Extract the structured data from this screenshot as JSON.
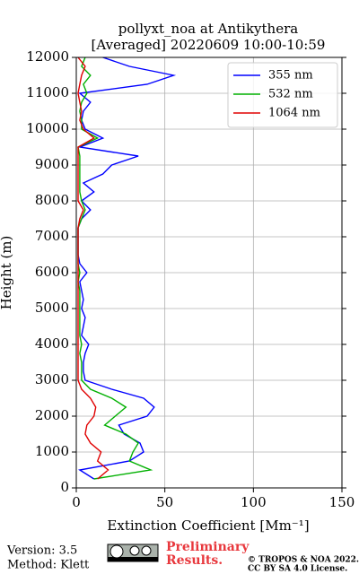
{
  "chart_data": {
    "type": "profile",
    "title": "pollyxt_noa at Antikythera",
    "subtitle": "[Averaged] 20220609 10:00-10:59",
    "xlabel": "Extinction Coefficient [Mm⁻¹]",
    "ylabel": "Height (m)",
    "x": [
      250,
      500,
      750,
      1000,
      1250,
      1500,
      1750,
      2000,
      2250,
      2500,
      2750,
      3000,
      3250,
      3500,
      3750,
      4000,
      4250,
      4500,
      4750,
      5000,
      5250,
      5500,
      5750,
      6000,
      6250,
      6500,
      6750,
      7000,
      7250,
      7500,
      7750,
      8000,
      8250,
      8500,
      8750,
      9000,
      9250,
      9500,
      9750,
      10000,
      10250,
      10500,
      10750,
      11000,
      11250,
      11500,
      11750,
      12000
    ],
    "series": [
      {
        "name": "355 nm",
        "color": "#0000ff",
        "values": [
          10,
          2,
          30,
          38,
          36,
          27,
          24,
          40,
          44,
          38,
          20,
          5,
          4,
          4,
          5,
          7,
          3,
          4,
          5,
          3,
          4,
          3,
          2,
          6,
          2,
          1,
          1,
          1,
          1,
          3,
          8,
          3,
          10,
          4,
          15,
          20,
          35,
          2,
          15,
          5,
          3,
          4,
          8,
          2,
          40,
          55,
          30,
          15
        ]
      },
      {
        "name": "532 nm",
        "color": "#00b000",
        "values": [
          10,
          42,
          30,
          32,
          35,
          28,
          16,
          22,
          28,
          20,
          8,
          3,
          3,
          3,
          2,
          3,
          2,
          2,
          2,
          2,
          2,
          2,
          1,
          2,
          1,
          1,
          1,
          1,
          1,
          3,
          5,
          3,
          2,
          2,
          2,
          2,
          2,
          1,
          12,
          3,
          3,
          2,
          3,
          6,
          4,
          8,
          3,
          5
        ]
      },
      {
        "name": "1064 nm",
        "color": "#e00000",
        "values": [
          12,
          18,
          12,
          14,
          8,
          5,
          6,
          10,
          11,
          8,
          3,
          1,
          1,
          1,
          1,
          1,
          1,
          1,
          1,
          1,
          1,
          1,
          1,
          1,
          1,
          1,
          1,
          1,
          1,
          2,
          4,
          1,
          1,
          1,
          1,
          1,
          1,
          1,
          10,
          4,
          2,
          3,
          2,
          1,
          2,
          3,
          5,
          1
        ]
      }
    ],
    "xlim": [
      0,
      150
    ],
    "xticks": [
      0,
      50,
      100,
      150
    ],
    "ylim": [
      0,
      12000
    ],
    "yticks": [
      0,
      1000,
      2000,
      3000,
      4000,
      5000,
      6000,
      7000,
      8000,
      9000,
      10000,
      11000,
      12000
    ],
    "grid": true,
    "legend": "upper right",
    "footer": {
      "version": "Version: 3.5",
      "method": "Method: Klett",
      "preliminary": [
        "Preliminary",
        "Results."
      ],
      "copyright": [
        "© TROPOS & NOA 2022.",
        "CC BY SA 4.0 License."
      ]
    }
  }
}
